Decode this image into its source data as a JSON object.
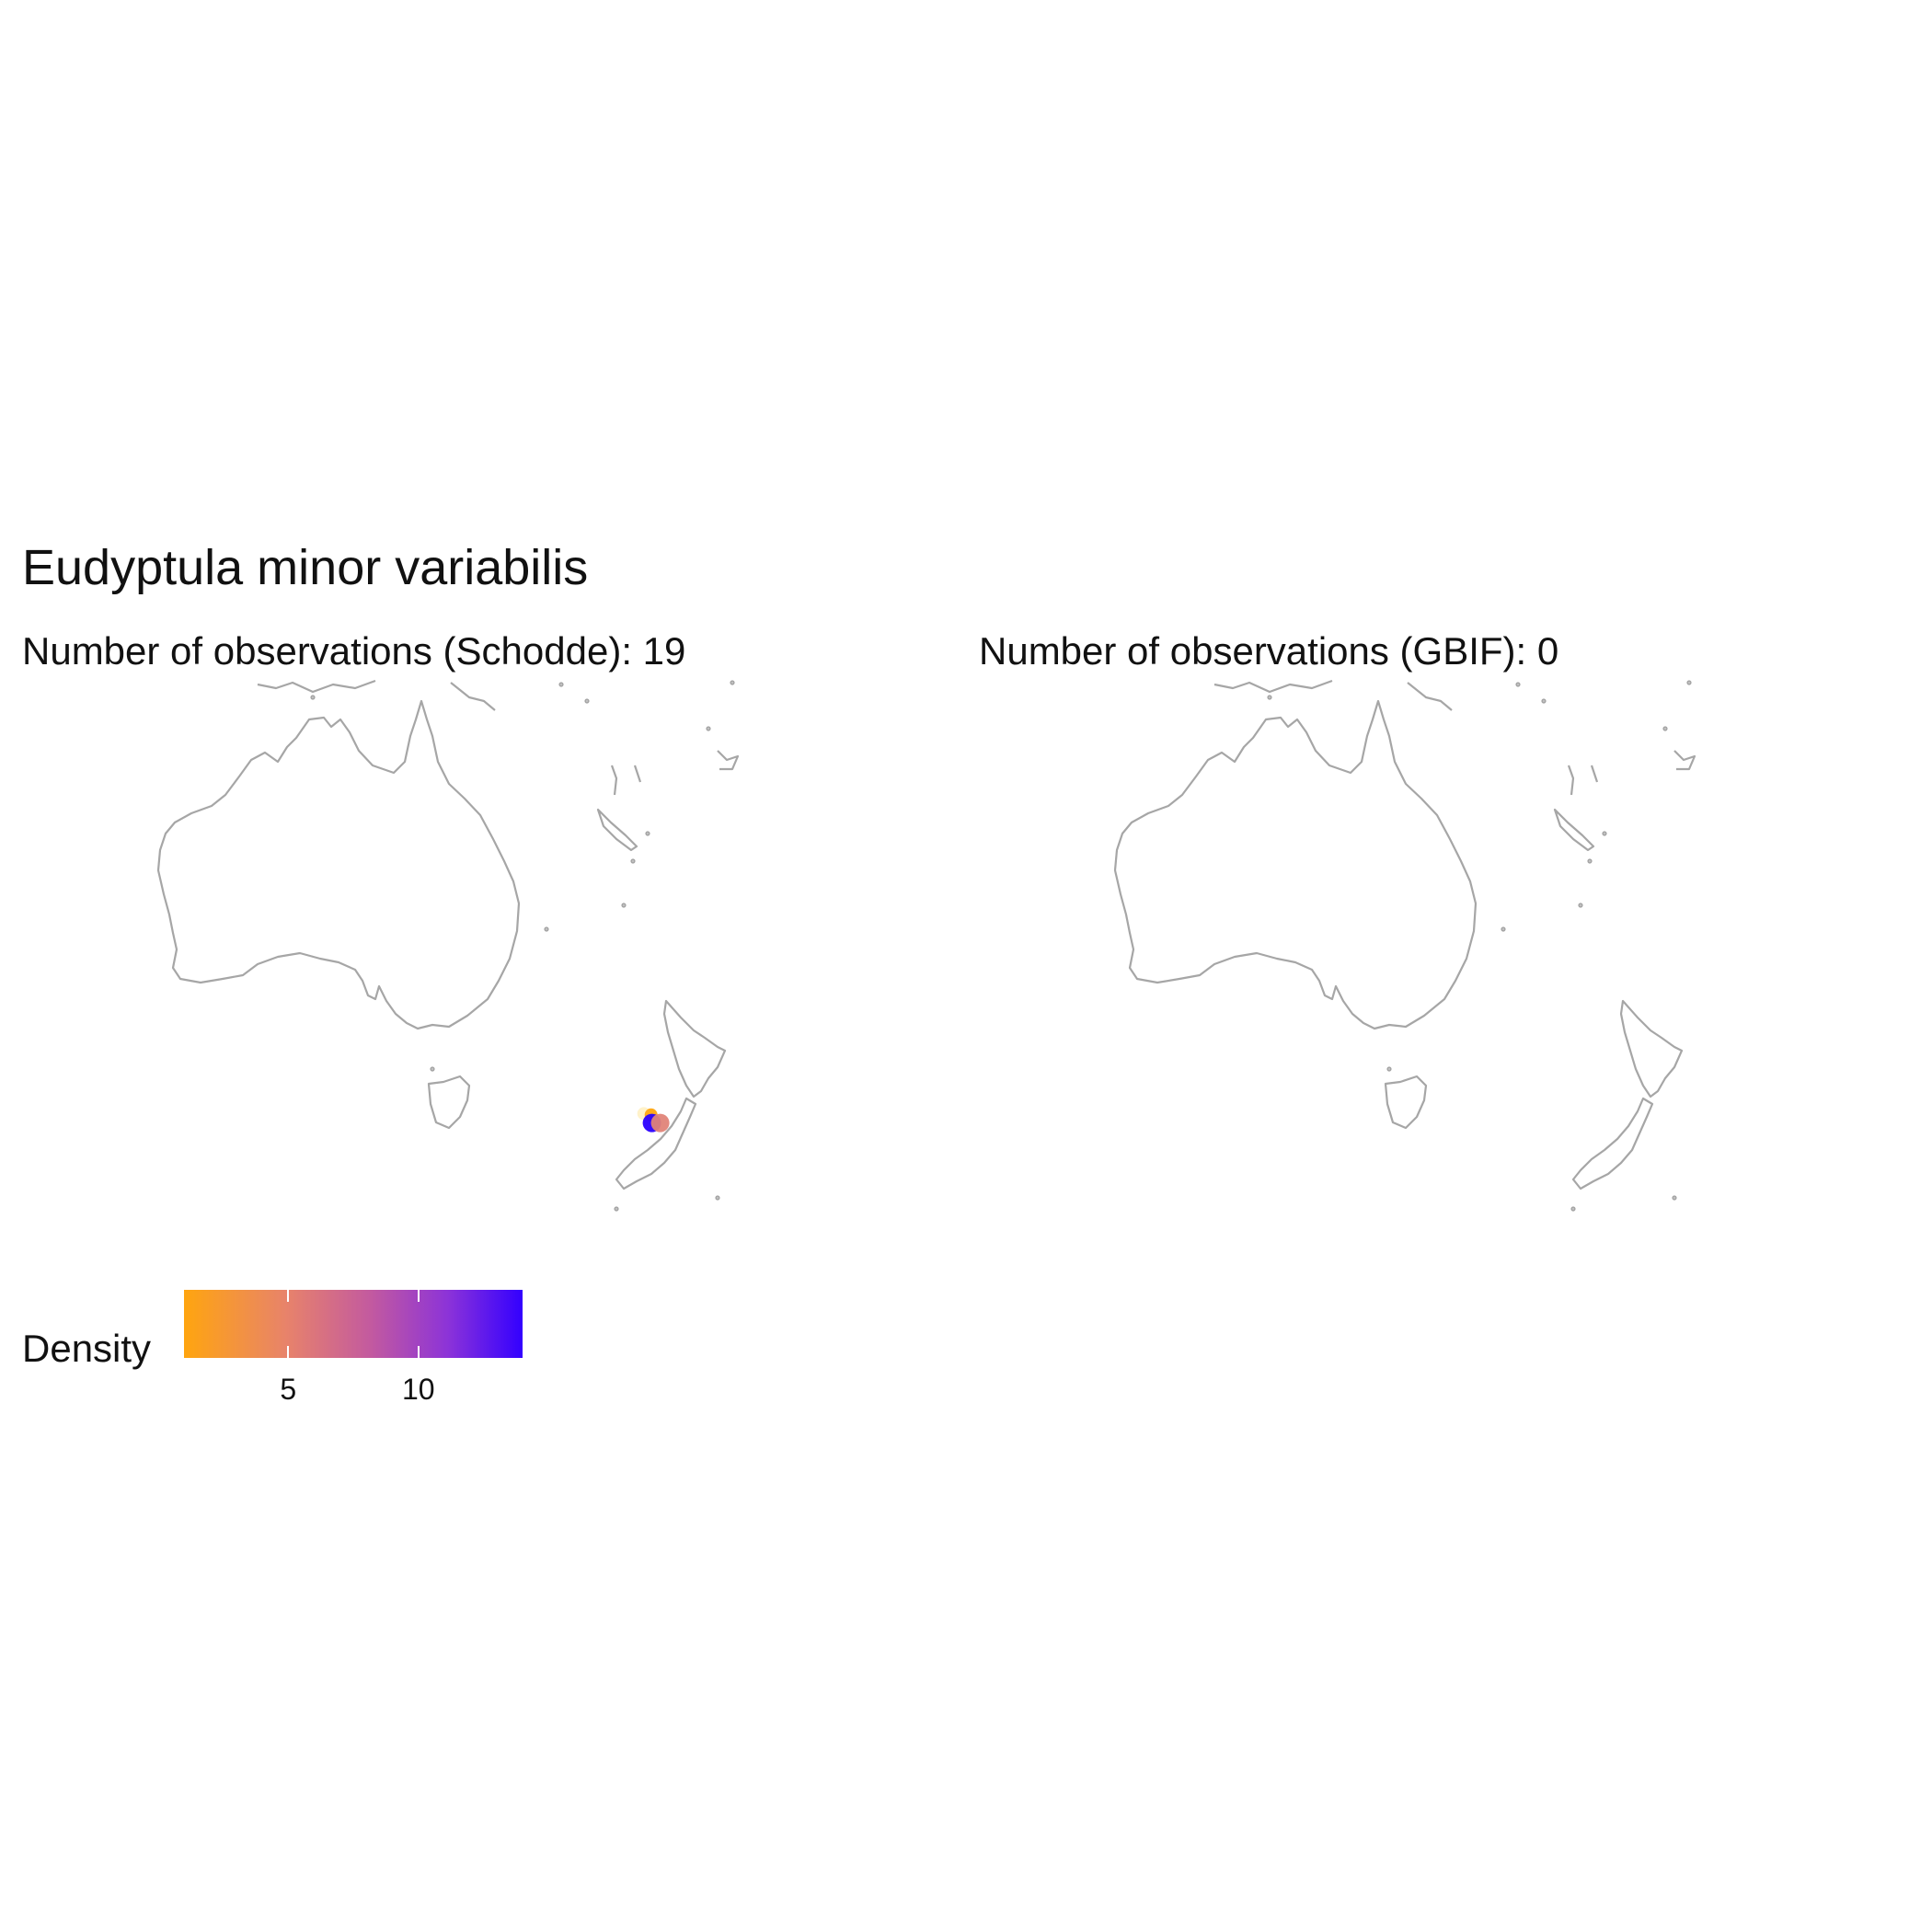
{
  "title": "Eudyptula minor variabilis",
  "panels": [
    {
      "subtitle": "Number of observations (Schodde): 19"
    },
    {
      "subtitle": "Number of observations (GBIF): 0"
    }
  ],
  "legend": {
    "title": "Density",
    "colors": [
      "#FFA50F",
      "#3300FF"
    ],
    "min": 1,
    "max": 14,
    "ticks": [
      5,
      10
    ]
  },
  "chart_data": {
    "type": "scatter",
    "panels": [
      {
        "name": "Schodde",
        "points": [
          {
            "lon": 172.3,
            "lat": -41.2,
            "density": 1,
            "color": "#FFE9A6"
          },
          {
            "lon": 173.2,
            "lat": -41.3,
            "density": 1,
            "color": "#FFA50F"
          },
          {
            "lon": 173.3,
            "lat": -41.9,
            "density": 14,
            "color": "#2A00FF"
          },
          {
            "lon": 174.3,
            "lat": -41.9,
            "density": 5,
            "color": "#E08478"
          }
        ]
      },
      {
        "name": "GBIF",
        "points": []
      }
    ]
  }
}
